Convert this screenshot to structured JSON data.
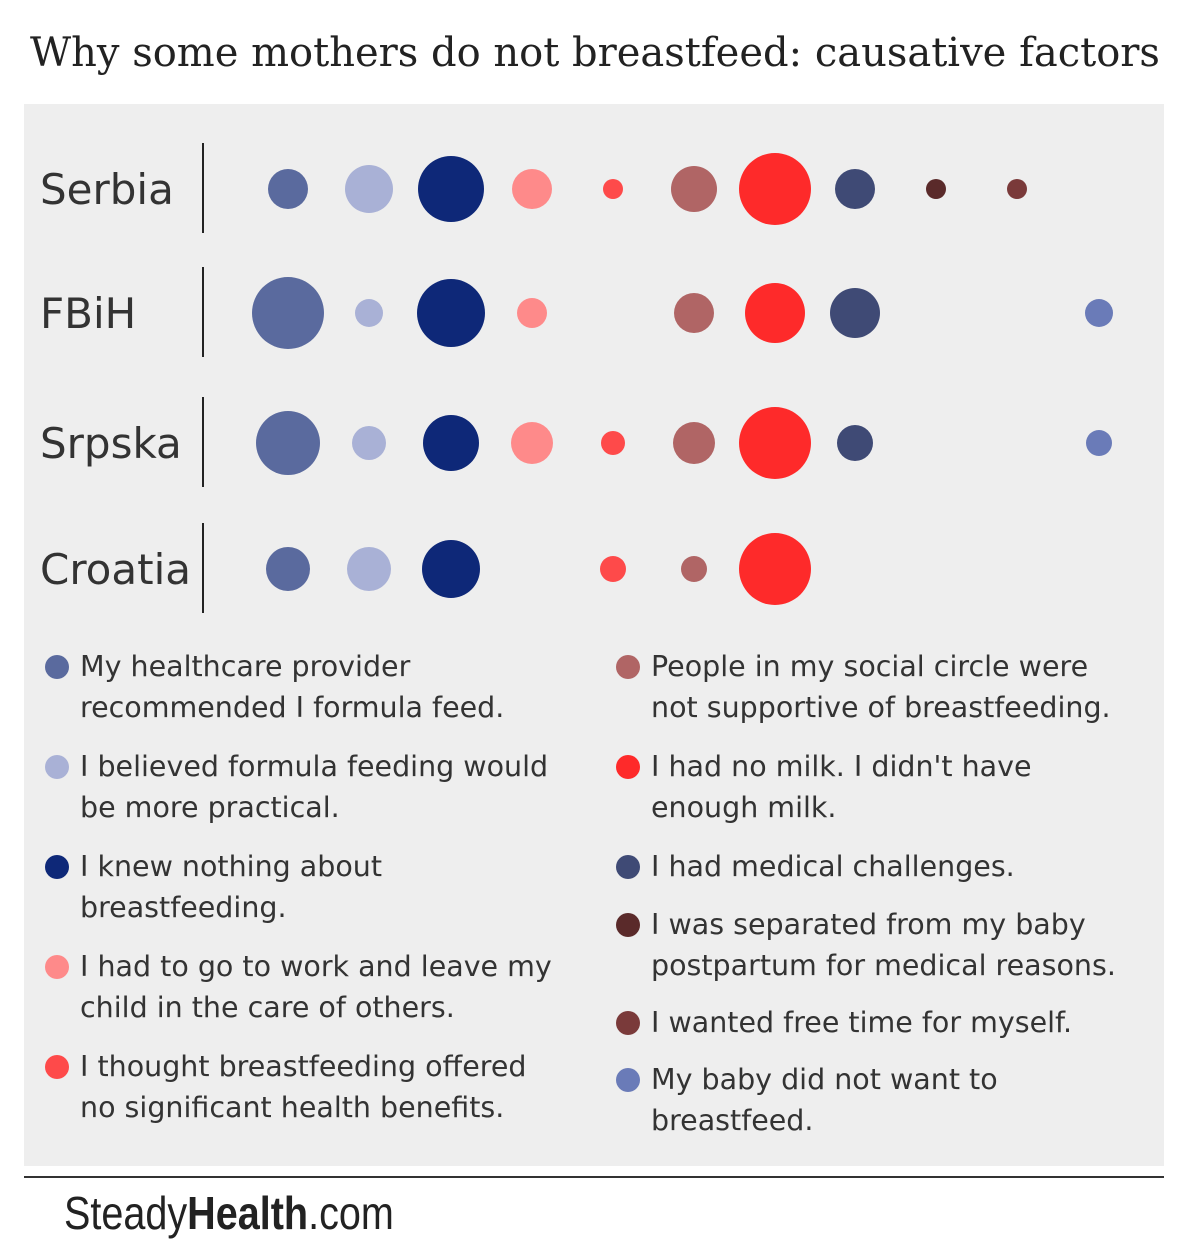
{
  "title": "Why some mothers do not breastfeed: causative factors",
  "brand": {
    "part1": "Steady",
    "part2": "Health",
    "part3": ".com"
  },
  "chart_data": {
    "type": "scatter",
    "title": "Why some mothers do not breastfeed: causative factors",
    "encoding": "bubble matrix; bubble size indicates relative frequency (0 = no bubble)",
    "categories": [
      "Serbia",
      "FBiH",
      "Srpska",
      "Croatia"
    ],
    "factors": [
      {
        "name": "My healthcare provider recommended I formula feed.",
        "color": "#5a6a9e"
      },
      {
        "name": "I believed formula feeding would be more practical.",
        "color": "#a9b1d6"
      },
      {
        "name": "I knew nothing about breastfeeding.",
        "color": "#0e2878"
      },
      {
        "name": "I had to go to work and leave my child in the care of others.",
        "color": "#fe8a8a"
      },
      {
        "name": "I thought breastfeeding offered no significant health benefits.",
        "color": "#fe4a4a"
      },
      {
        "name": "People in my social circle were not supportive of breastfeeding.",
        "color": "#b06565"
      },
      {
        "name": "I had no milk. I didn't have enough milk.",
        "color": "#fe2a2a"
      },
      {
        "name": "I had medical challenges.",
        "color": "#3f4a75"
      },
      {
        "name": "I was separated from my baby postpartum for medical reasons.",
        "color": "#5a2a2a"
      },
      {
        "name": "I wanted free time for myself.",
        "color": "#7a3a3a"
      },
      {
        "name": "My baby did not want to breastfeed.",
        "color": "#6a7bb8"
      }
    ],
    "series": [
      {
        "name": "Serbia",
        "values": [
          20,
          24,
          33,
          20,
          10,
          23,
          36,
          20,
          10,
          10,
          0
        ]
      },
      {
        "name": "FBiH",
        "values": [
          36,
          14,
          34,
          15,
          0,
          20,
          30,
          25,
          0,
          0,
          14
        ]
      },
      {
        "name": "Srpska",
        "values": [
          32,
          17,
          28,
          21,
          12,
          21,
          36,
          18,
          0,
          0,
          13
        ]
      },
      {
        "name": "Croatia",
        "values": [
          22,
          22,
          29,
          0,
          13,
          13,
          36,
          0,
          0,
          0,
          0
        ]
      }
    ]
  }
}
